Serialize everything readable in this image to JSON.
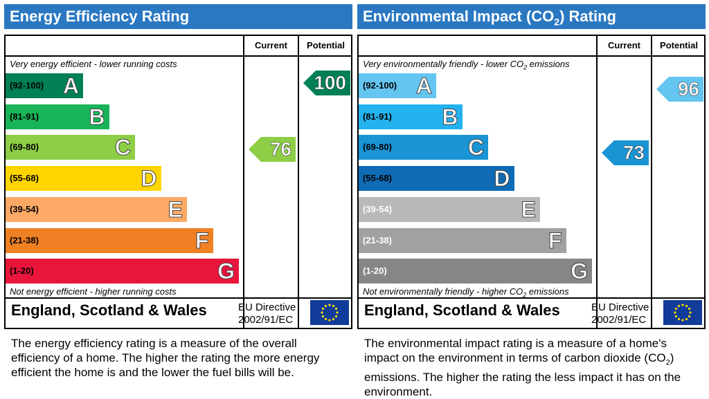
{
  "energy": {
    "title": "Energy Efficiency Rating",
    "col_current": "Current",
    "col_potential": "Potential",
    "top_note": "Very energy efficient - lower running costs",
    "bottom_note": "Not energy efficient - higher running costs",
    "region": "England, Scotland & Wales",
    "directive_line1": "EU Directive",
    "directive_line2": "2002/91/EC",
    "description": "The energy efficiency rating is a measure of the overall efficiency of a home. The higher the rating the more energy efficient the home is and the lower the fuel bills will be.",
    "bands": [
      {
        "range": "(92-100)",
        "letter": "A",
        "color": "#008054"
      },
      {
        "range": "(81-91)",
        "letter": "B",
        "color": "#19b459"
      },
      {
        "range": "(69-80)",
        "letter": "C",
        "color": "#8dce46"
      },
      {
        "range": "(55-68)",
        "letter": "D",
        "color": "#ffd500"
      },
      {
        "range": "(39-54)",
        "letter": "E",
        "color": "#fcaa65"
      },
      {
        "range": "(21-38)",
        "letter": "F",
        "color": "#ef8023"
      },
      {
        "range": "(1-20)",
        "letter": "G",
        "color": "#e9153b"
      }
    ],
    "current": {
      "value": "76",
      "band": "C",
      "color": "#8dce46"
    },
    "potential": {
      "value": "100",
      "band": "A",
      "color": "#008054"
    }
  },
  "environment": {
    "title_pre": "Environmental Impact (CO",
    "title_sub": "2",
    "title_post": ") Rating",
    "col_current": "Current",
    "col_potential": "Potential",
    "top_note_pre": "Very environmentally friendly - lower CO",
    "top_note_sub": "2",
    "top_note_post": " emissions",
    "bottom_note_pre": "Not environmentally friendly - higher CO",
    "bottom_note_sub": "2",
    "bottom_note_post": " emissions",
    "region": "England, Scotland & Wales",
    "directive_line1": "EU Directive",
    "directive_line2": "2002/91/EC",
    "description_pre": "The environmental impact rating is a measure of a home's impact on the environment in terms of carbon dioxide (CO",
    "description_sub": "2",
    "description_post": ") emissions. The higher the rating the less impact it has on the environment.",
    "bands": [
      {
        "range": "(92-100)",
        "letter": "A",
        "color": "#63c5f0"
      },
      {
        "range": "(81-91)",
        "letter": "B",
        "color": "#23b2ee"
      },
      {
        "range": "(69-80)",
        "letter": "C",
        "color": "#1a94d4"
      },
      {
        "range": "(55-68)",
        "letter": "D",
        "color": "#0f6bb5"
      },
      {
        "range": "(39-54)",
        "letter": "E",
        "color": "#b9b9b9"
      },
      {
        "range": "(21-38)",
        "letter": "F",
        "color": "#a1a1a1"
      },
      {
        "range": "(1-20)",
        "letter": "G",
        "color": "#868686"
      }
    ],
    "current": {
      "value": "73",
      "band": "C",
      "color": "#1a94d4"
    },
    "potential": {
      "value": "96",
      "band": "A",
      "color": "#63c5f0"
    }
  },
  "chart_data": [
    {
      "type": "bar",
      "title": "Energy Efficiency Rating",
      "categories": [
        "A",
        "B",
        "C",
        "D",
        "E",
        "F",
        "G"
      ],
      "ranges": [
        "(92-100)",
        "(81-91)",
        "(69-80)",
        "(55-68)",
        "(39-54)",
        "(21-38)",
        "(1-20)"
      ],
      "current": 76,
      "potential": 100
    },
    {
      "type": "bar",
      "title": "Environmental Impact (CO2) Rating",
      "categories": [
        "A",
        "B",
        "C",
        "D",
        "E",
        "F",
        "G"
      ],
      "ranges": [
        "(92-100)",
        "(81-91)",
        "(69-80)",
        "(55-68)",
        "(39-54)",
        "(21-38)",
        "(1-20)"
      ],
      "current": 73,
      "potential": 96
    }
  ],
  "icons": {
    "eu_flag": "eu-flag-icon"
  }
}
